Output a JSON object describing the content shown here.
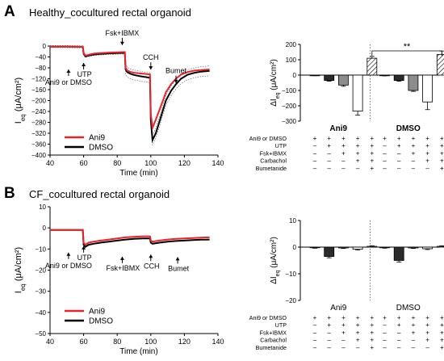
{
  "panels": [
    {
      "letter": "A",
      "title": "Healthy_cocultured rectal organoid"
    },
    {
      "letter": "B",
      "title": "CF_cocultured rectal organoid"
    }
  ],
  "line_ylabel": {
    "main": "I",
    "sub": "eq",
    "unit": " (μA/cm²)"
  },
  "bar_ylabel": {
    "main": "ΔI",
    "sub": "eq",
    "unit": " (μA/cm²)"
  },
  "line_xlabel": "Time (min)",
  "legend": [
    "Ani9",
    "DMSO"
  ],
  "events_top": [
    {
      "label": "UTP",
      "x": 60,
      "pos": "below",
      "extra": "Ani9 or DMSO",
      "extra_x": 51
    },
    {
      "label": "Fsk+IBMX",
      "x": 83,
      "pos": "above"
    },
    {
      "label": "CCH",
      "x": 100,
      "pos": "above"
    },
    {
      "label": "Bumet",
      "x": 115,
      "pos": "above"
    }
  ],
  "events_bottom": [
    {
      "label": "UTP",
      "x": 60,
      "pos": "below",
      "extra": "Ani9 or DMSO",
      "extra_x": 51
    },
    {
      "label": "Fsk+IBMX",
      "x": 83,
      "pos": "below"
    },
    {
      "label": "CCH",
      "x": 100,
      "pos": "below"
    },
    {
      "label": "Bumet",
      "x": 116,
      "pos": "below"
    }
  ],
  "table_rows": [
    "Ani9 or DMSO",
    "UTP",
    "Fsk+IBMX",
    "Carbachol",
    "Bumetanide"
  ],
  "table_signs": [
    [
      "+",
      "+",
      "+",
      "+",
      "+"
    ],
    [
      "–",
      "+",
      "+",
      "+",
      "+"
    ],
    [
      "–",
      "–",
      "+",
      "+",
      "+"
    ],
    [
      "–",
      "–",
      "–",
      "+",
      "+"
    ],
    [
      "–",
      "–",
      "–",
      "–",
      "+"
    ]
  ],
  "significance": "**",
  "colors": {
    "ani9": "#e8242a",
    "dmso": "#000000",
    "bar_dark": "#2b2b2b",
    "bar_gray": "#8c8c8c",
    "bar_white": "#ffffff",
    "hatch": "#000000"
  },
  "chart_data": [
    {
      "type": "line",
      "panel": "A",
      "xlabel": "Time (min)",
      "ylabel": "Ieq (μA/cm²)",
      "xlim": [
        40,
        140
      ],
      "ylim": [
        -400,
        0
      ],
      "xticks": [
        40,
        60,
        80,
        100,
        120,
        140
      ],
      "yticks": [
        0,
        -40,
        -80,
        -120,
        -160,
        -200,
        -240,
        -280,
        -320,
        -360,
        -400
      ],
      "series": [
        {
          "name": "Ani9",
          "x": [
            40,
            50,
            59.5,
            60,
            61,
            63,
            66,
            70,
            75,
            80,
            84.5,
            85,
            86,
            88,
            90,
            93,
            96,
            99.5,
            100,
            101,
            103,
            106,
            109,
            112,
            115,
            118,
            122,
            126,
            130,
            135
          ],
          "y": [
            -2,
            -2,
            -3,
            -25,
            -35,
            -32,
            -28,
            -26,
            -24,
            -23,
            -22,
            -80,
            -90,
            -95,
            -98,
            -100,
            -102,
            -104,
            -250,
            -300,
            -270,
            -220,
            -170,
            -140,
            -120,
            -105,
            -95,
            -90,
            -88,
            -86
          ]
        },
        {
          "name": "DMSO",
          "x": [
            40,
            50,
            59.5,
            60,
            61,
            63,
            66,
            70,
            75,
            80,
            84.5,
            85,
            86,
            88,
            90,
            93,
            96,
            99.5,
            100,
            101,
            103,
            106,
            109,
            112,
            115,
            118,
            122,
            126,
            130,
            135
          ],
          "y": [
            -2,
            -2,
            -3,
            -28,
            -38,
            -35,
            -31,
            -29,
            -27,
            -26,
            -25,
            -85,
            -96,
            -102,
            -106,
            -110,
            -113,
            -116,
            -270,
            -345,
            -320,
            -260,
            -200,
            -165,
            -140,
            -120,
            -105,
            -98,
            -94,
            -91
          ]
        }
      ]
    },
    {
      "type": "bar",
      "panel": "A",
      "ylabel": "ΔIeq (μA/cm²)",
      "ylim": [
        -300,
        200
      ],
      "yticks": [
        200,
        100,
        0,
        -100,
        -200,
        -300
      ],
      "groups": [
        "Ani9",
        "DMSO"
      ],
      "categories": [
        "Ani9 or DMSO",
        "UTP",
        "Fsk+IBMX",
        "Carbachol",
        "Bumetanide"
      ],
      "series": [
        {
          "name": "Ani9",
          "values": [
            -2,
            -35,
            -65,
            -235,
            110
          ],
          "errors": [
            2,
            5,
            8,
            25,
            12
          ]
        },
        {
          "name": "DMSO",
          "values": [
            -3,
            -35,
            -100,
            -175,
            135
          ],
          "errors": [
            2,
            5,
            6,
            50,
            22
          ]
        }
      ]
    },
    {
      "type": "line",
      "panel": "B",
      "xlabel": "Time (min)",
      "ylabel": "Ieq (μA/cm²)",
      "xlim": [
        40,
        140
      ],
      "ylim": [
        -50,
        10
      ],
      "xticks": [
        40,
        60,
        80,
        100,
        120,
        140
      ],
      "yticks": [
        10,
        0,
        -10,
        -20,
        -30,
        -40,
        -50
      ],
      "series": [
        {
          "name": "Ani9",
          "x": [
            40,
            59.5,
            60,
            61,
            63,
            66,
            70,
            75,
            80,
            85,
            90,
            95,
            99.5,
            100,
            101,
            105,
            110,
            115,
            120,
            125,
            130,
            135
          ],
          "y": [
            -1,
            -1,
            -7,
            -8,
            -7,
            -6.5,
            -6,
            -5.5,
            -5,
            -4.5,
            -4.2,
            -4,
            -4,
            -6,
            -6.5,
            -6,
            -5.5,
            -5.2,
            -5,
            -4.8,
            -4.6,
            -4.5
          ]
        },
        {
          "name": "DMSO",
          "x": [
            40,
            59.5,
            60,
            61,
            63,
            66,
            70,
            75,
            80,
            85,
            90,
            95,
            99.5,
            100,
            101,
            105,
            110,
            115,
            120,
            125,
            130,
            135
          ],
          "y": [
            -1,
            -1,
            -8,
            -9,
            -8,
            -7.5,
            -7,
            -6.5,
            -6,
            -5.5,
            -5.2,
            -5,
            -5,
            -7,
            -7.5,
            -7,
            -6.5,
            -6.2,
            -6,
            -5.8,
            -5.6,
            -5.5
          ]
        }
      ]
    },
    {
      "type": "bar",
      "panel": "B",
      "ylabel": "ΔIeq (μA/cm²)",
      "ylim": [
        -20,
        10
      ],
      "yticks": [
        10,
        0,
        -10,
        -20
      ],
      "groups": [
        "Ani9",
        "DMSO"
      ],
      "categories": [
        "Ani9 or DMSO",
        "UTP",
        "Fsk+IBMX",
        "Carbachol",
        "Bumetanide"
      ],
      "series": [
        {
          "name": "Ani9",
          "values": [
            -0.2,
            -3.5,
            -0.3,
            -0.8,
            0.3
          ],
          "errors": [
            0.2,
            0.5,
            0.2,
            0.3,
            0.2
          ]
        },
        {
          "name": "DMSO",
          "values": [
            -0.2,
            -5,
            -0.3,
            -0.6,
            0.3
          ],
          "errors": [
            0.2,
            0.6,
            0.2,
            0.3,
            0.2
          ]
        }
      ]
    }
  ]
}
